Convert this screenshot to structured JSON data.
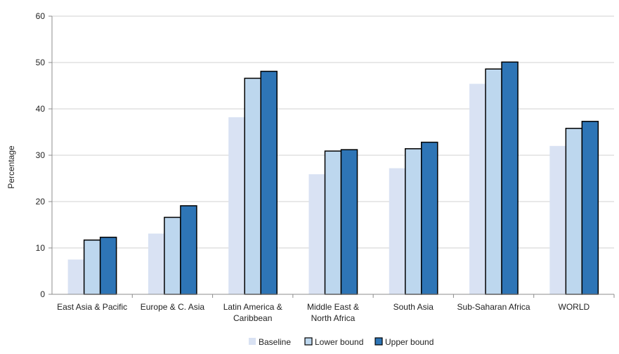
{
  "chart_data": {
    "type": "bar",
    "title": "",
    "xlabel": "",
    "ylabel": "Percentage",
    "ylim": [
      0,
      60
    ],
    "yticks": [
      0,
      10,
      20,
      30,
      40,
      50,
      60
    ],
    "grid": true,
    "legend_position": "bottom",
    "categories": [
      [
        "East Asia & Pacific"
      ],
      [
        "Europe & C. Asia"
      ],
      [
        "Latin America &",
        "Caribbean"
      ],
      [
        "Middle East &",
        "North Africa"
      ],
      [
        "South Asia"
      ],
      [
        "Sub-Saharan Africa"
      ],
      [
        "WORLD"
      ]
    ],
    "series": [
      {
        "name": "Baseline",
        "color": "#d9e2f3",
        "outline": false,
        "values": [
          7.5,
          13.1,
          38.2,
          25.9,
          27.2,
          45.4,
          32.0
        ]
      },
      {
        "name": "Lower bound",
        "color": "#bdd7ee",
        "outline": true,
        "values": [
          11.7,
          16.6,
          46.6,
          30.9,
          31.4,
          48.6,
          35.8
        ]
      },
      {
        "name": "Upper bound",
        "color": "#2e75b6",
        "outline": true,
        "values": [
          12.3,
          19.1,
          48.1,
          31.2,
          32.8,
          50.1,
          37.3
        ]
      }
    ]
  }
}
